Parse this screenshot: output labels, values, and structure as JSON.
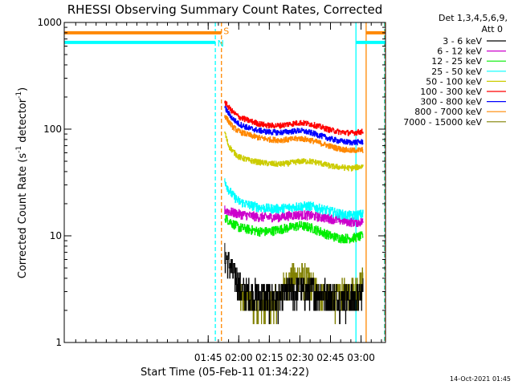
{
  "chart_data": {
    "type": "line",
    "title": "RHESSI Observing Summary Count Rates, Corrected",
    "xlabel": "Start Time (05-Feb-11 01:34:22)",
    "ylabel": "Corrected Count Rate (s",
    "ylabel_sup1": "-1",
    "ylabel_mid": " detector",
    "ylabel_sup2": "-1",
    "ylabel_end": ")",
    "yscale": "log",
    "ylim": [
      1,
      1000
    ],
    "xlim_minutes": [
      34.37,
      192.0
    ],
    "y_ticks": [
      {
        "v": 1,
        "label": "1"
      },
      {
        "v": 10,
        "label": "10"
      },
      {
        "v": 100,
        "label": "100"
      },
      {
        "v": 1000,
        "label": "1000"
      }
    ],
    "x_ticks": [
      {
        "t": 105,
        "label": "01:45"
      },
      {
        "t": 120,
        "label": "02:00"
      },
      {
        "t": 135,
        "label": "02:15"
      },
      {
        "t": 150,
        "label": "02:30"
      },
      {
        "t": 165,
        "label": "02:45"
      },
      {
        "t": 180,
        "label": "03:00"
      }
    ],
    "legend": {
      "placement": "right",
      "header1": "Det 1,3,4,5,6,9,",
      "header2": "Att 0"
    },
    "series": [
      {
        "name": "3 - 6 keV",
        "color": "#000000",
        "x": [
          113,
          115,
          117,
          119,
          121,
          125,
          130,
          135,
          140,
          145,
          150,
          155,
          160,
          165,
          170,
          174,
          178,
          181
        ],
        "y": [
          6.5,
          5.5,
          4.5,
          4.0,
          3.2,
          3.0,
          2.8,
          2.6,
          2.6,
          3.0,
          3.2,
          3.0,
          3.0,
          2.8,
          2.6,
          2.6,
          2.6,
          3.0
        ]
      },
      {
        "name": "6 - 12 keV",
        "color": "#cc00cc",
        "x": [
          113,
          115,
          117,
          120,
          125,
          130,
          135,
          140,
          145,
          150,
          155,
          160,
          165,
          170,
          175,
          181
        ],
        "y": [
          17.5,
          17.0,
          16.5,
          16.0,
          15.5,
          15.0,
          15.0,
          15.0,
          15.5,
          15.8,
          15.5,
          15.0,
          14.5,
          14.0,
          13.5,
          13.5
        ]
      },
      {
        "name": "12 - 25 keV",
        "color": "#00ee00",
        "x": [
          113,
          115,
          117,
          120,
          125,
          130,
          135,
          140,
          145,
          150,
          155,
          160,
          165,
          170,
          175,
          181
        ],
        "y": [
          15.0,
          14.0,
          13.0,
          12.0,
          11.5,
          11.0,
          11.0,
          11.5,
          12.0,
          12.5,
          12.0,
          11.0,
          10.0,
          9.5,
          9.5,
          10.0
        ]
      },
      {
        "name": "25 - 50 keV",
        "color": "#00ffff",
        "x": [
          113,
          114,
          115,
          117,
          120,
          125,
          130,
          135,
          140,
          145,
          150,
          155,
          160,
          165,
          170,
          175,
          181
        ],
        "y": [
          34.0,
          30.0,
          27.0,
          24.0,
          21.0,
          19.5,
          18.5,
          18.0,
          18.0,
          18.5,
          19.0,
          19.0,
          18.0,
          17.0,
          16.0,
          15.5,
          16.0
        ]
      },
      {
        "name": "50 - 100 keV",
        "color": "#cccc00",
        "x": [
          113,
          114,
          115,
          117,
          120,
          125,
          130,
          135,
          140,
          145,
          150,
          155,
          160,
          165,
          170,
          175,
          181
        ],
        "y": [
          95.0,
          80.0,
          70.0,
          62.0,
          55.0,
          51.0,
          49.0,
          47.5,
          47.0,
          48.0,
          50.0,
          50.0,
          48.0,
          45.0,
          44.0,
          43.0,
          45.0
        ]
      },
      {
        "name": "100 - 300 keV",
        "color": "#ff0000",
        "x": [
          113,
          115,
          117,
          120,
          125,
          130,
          135,
          140,
          145,
          150,
          155,
          160,
          165,
          170,
          175,
          181
        ],
        "y": [
          180.0,
          160.0,
          145.0,
          130.0,
          120.0,
          112.0,
          108.0,
          108.0,
          112.0,
          115.0,
          112.0,
          105.0,
          98.0,
          94.0,
          92.0,
          95.0
        ]
      },
      {
        "name": "300 - 800 keV",
        "color": "#0000ff",
        "x": [
          113,
          115,
          117,
          120,
          125,
          130,
          135,
          140,
          145,
          150,
          155,
          160,
          165,
          170,
          175,
          181
        ],
        "y": [
          160.0,
          140.0,
          125.0,
          112.0,
          102.0,
          97.0,
          94.0,
          93.0,
          95.0,
          97.0,
          93.0,
          87.0,
          81.0,
          77.0,
          75.0,
          76.0
        ]
      },
      {
        "name": "800 - 7000 keV",
        "color": "#ff8800",
        "x": [
          113,
          115,
          117,
          120,
          125,
          130,
          135,
          140,
          145,
          150,
          155,
          160,
          165,
          170,
          175,
          181
        ],
        "y": [
          135.0,
          118.0,
          105.0,
          95.0,
          88.0,
          83.0,
          80.0,
          79.0,
          80.0,
          82.0,
          79.0,
          74.0,
          69.0,
          65.0,
          63.0,
          64.0
        ]
      },
      {
        "name": "7000 - 15000 keV",
        "color": "#808000",
        "x": [
          120,
          124,
          128,
          132,
          136,
          140,
          143,
          146,
          150,
          154,
          158,
          162,
          166,
          170,
          174,
          178,
          181
        ],
        "y": [
          3.0,
          2.5,
          2.2,
          2.2,
          2.3,
          2.8,
          3.5,
          4.0,
          4.2,
          3.8,
          3.0,
          2.8,
          2.6,
          2.8,
          3.0,
          3.3,
          3.8
        ]
      }
    ],
    "markers": [
      {
        "t": 108.5,
        "color": "#00ffff",
        "style": "dashed"
      },
      {
        "t": 111.5,
        "color": "#ff8800",
        "style": "dashed"
      },
      {
        "t": 177.5,
        "color": "#00ffff",
        "style": "solid"
      },
      {
        "t": 182.5,
        "color": "#ff8800",
        "style": "solid"
      },
      {
        "t": 191.5,
        "color": "#00ffff",
        "style": "dashed"
      },
      {
        "t": 191.8,
        "color": "#ff8800",
        "style": "dashed"
      }
    ],
    "flag_bars": [
      {
        "t0": 34.37,
        "t1": 111.5,
        "y": 800,
        "color": "#ff8800"
      },
      {
        "t0": 34.37,
        "t1": 108.5,
        "y": 650,
        "color": "#00ffff"
      },
      {
        "t0": 177.5,
        "t1": 192.0,
        "y": 650,
        "color": "#00ffff"
      },
      {
        "t0": 182.5,
        "t1": 192.0,
        "y": 800,
        "color": "#ff8800"
      }
    ],
    "flag_labels": [
      {
        "text": "S",
        "t": 112.5,
        "y": 850,
        "color": "#ff8800"
      },
      {
        "text": "N",
        "t": 109.5,
        "y": 650,
        "color": "#00ffff"
      }
    ]
  },
  "footer": {
    "timestamp": "14-Oct-2021 01:45"
  }
}
